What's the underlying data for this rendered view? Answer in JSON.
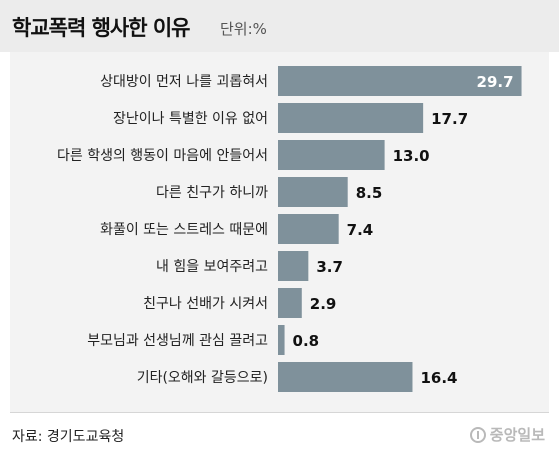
{
  "title": "학교폭력 행사한 이유",
  "unit": "단위:%",
  "source": "자료: 경기도교육청",
  "logo_text": "중앙일보",
  "colors": {
    "bar": "#7f919b",
    "header_bg": "#ececec",
    "panel_bg": "#f3f3f3"
  },
  "chart_data": {
    "type": "bar",
    "orientation": "horizontal",
    "categories": [
      "상대방이 먼저 나를 괴롭혀서",
      "장난이나 특별한 이유 없어",
      "다른 학생의 행동이 마음에 안들어서",
      "다른 친구가 하니까",
      "화풀이 또는 스트레스 때문에",
      "내 힘을 보여주려고",
      "친구나 선배가 시켜서",
      "부모님과 선생님께 관심 끌려고",
      "기타(오해와 갈등으로)"
    ],
    "values": [
      29.7,
      17.7,
      13.0,
      8.5,
      7.4,
      3.7,
      2.9,
      0.8,
      16.4
    ],
    "value_labels": [
      "29.7",
      "17.7",
      "13.0",
      "8.5",
      "7.4",
      "3.7",
      "2.9",
      "0.8",
      "16.4"
    ]
  }
}
